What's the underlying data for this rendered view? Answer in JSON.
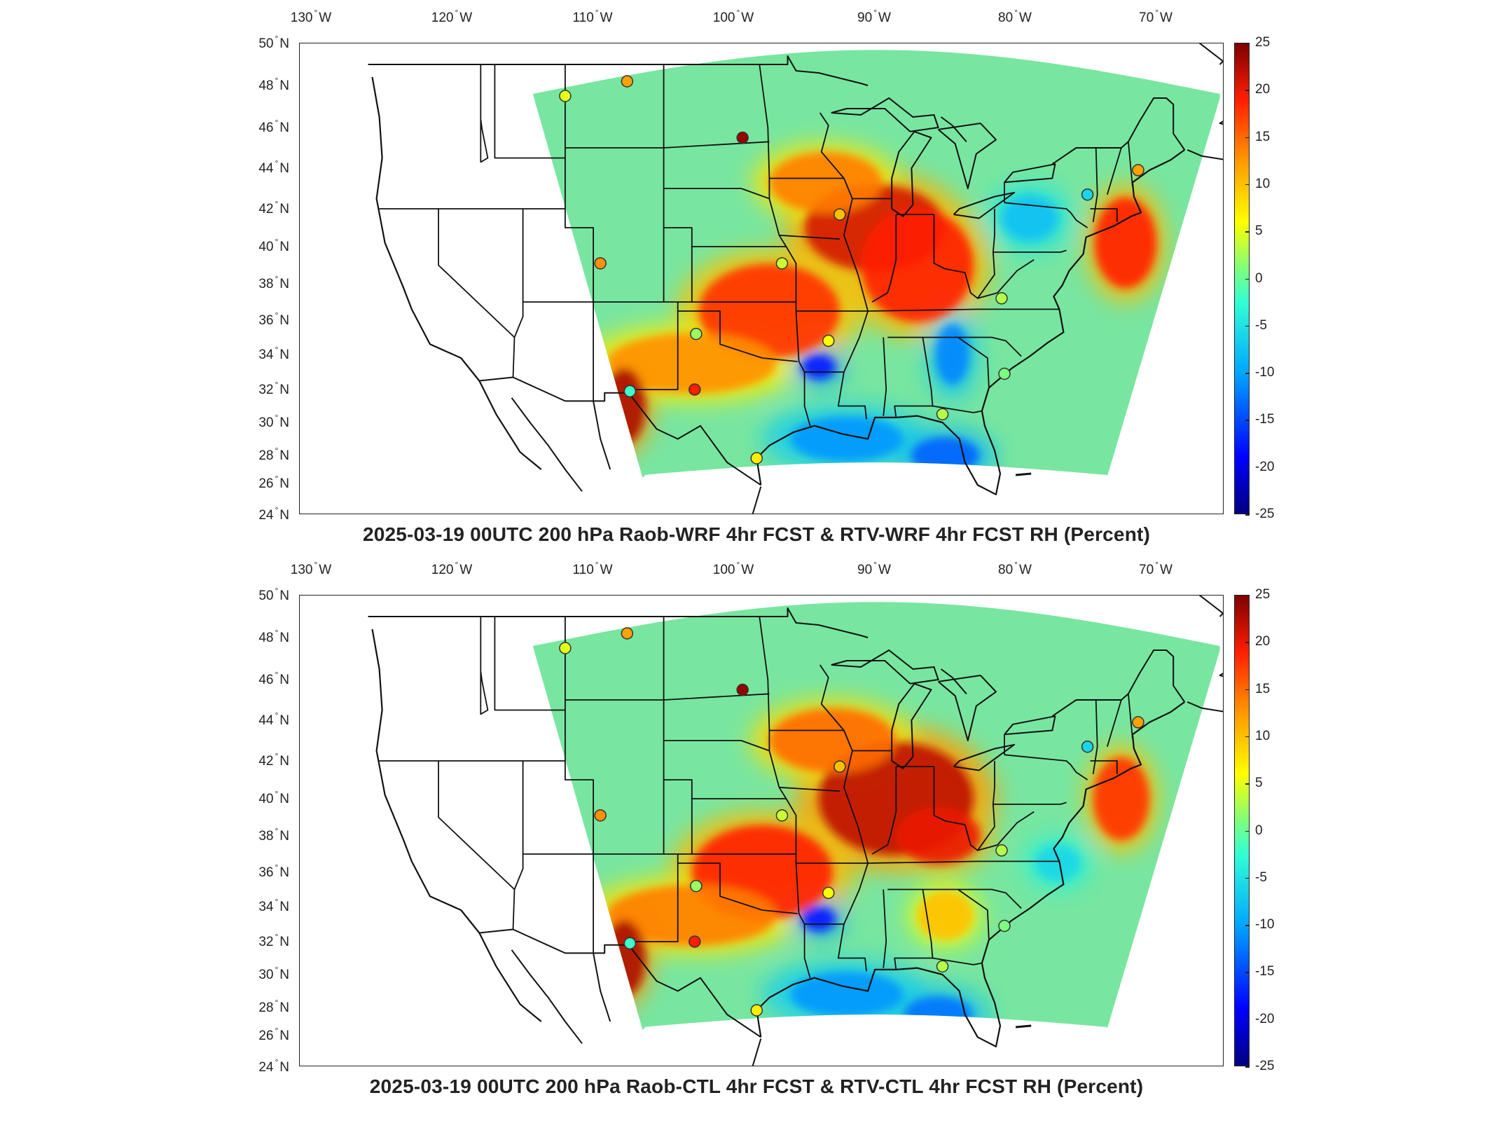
{
  "colors": {
    "colormap": [
      "#00007f",
      "#0000ff",
      "#00a6ff",
      "#32ffd4",
      "#7dff7d",
      "#ffff00",
      "#ff9900",
      "#ff1e00",
      "#7f0000"
    ],
    "domain_base": "#78e6a0",
    "frame": "#222222",
    "marker_outline": "#333333"
  },
  "axes": {
    "lon_labels": [
      "130",
      "120",
      "110",
      "100",
      "90",
      "80",
      "70"
    ],
    "lon_suffix": "W",
    "lat_labels": [
      "50",
      "48",
      "46",
      "44",
      "42",
      "40",
      "38",
      "36",
      "34",
      "32",
      "30",
      "28",
      "26",
      "24"
    ],
    "lat_suffix": "N"
  },
  "colorbar": {
    "ticks": [
      "25",
      "20",
      "15",
      "10",
      "5",
      "0",
      "-5",
      "-10",
      "-15",
      "-20",
      "-25"
    ],
    "min": -25,
    "max": 25
  },
  "panels": [
    {
      "title": "2025-03-19 00UTC 200 hPa Raob-WRF 4hr FCST & RTV-WRF 4hr FCST RH (Percent)",
      "stations": [
        {
          "lon": -111.0,
          "lat": 47.5,
          "value": 5
        },
        {
          "lon": -106.6,
          "lat": 48.2,
          "value": 12
        },
        {
          "lon": -98.4,
          "lat": 45.5,
          "value": 24
        },
        {
          "lon": -108.5,
          "lat": 39.1,
          "value": 13
        },
        {
          "lon": -95.6,
          "lat": 39.1,
          "value": 4
        },
        {
          "lon": -101.7,
          "lat": 35.2,
          "value": 2
        },
        {
          "lon": -92.3,
          "lat": 34.8,
          "value": 6
        },
        {
          "lon": -101.8,
          "lat": 32.0,
          "value": 19
        },
        {
          "lon": -106.4,
          "lat": 31.9,
          "value": -2
        },
        {
          "lon": -97.4,
          "lat": 27.8,
          "value": 7
        },
        {
          "lon": -80.0,
          "lat": 37.2,
          "value": 3
        },
        {
          "lon": -79.8,
          "lat": 32.9,
          "value": 1
        },
        {
          "lon": -84.2,
          "lat": 30.5,
          "value": 3
        },
        {
          "lon": -73.9,
          "lat": 42.7,
          "value": -6
        },
        {
          "lon": -70.3,
          "lat": 43.9,
          "value": 12
        },
        {
          "lon": -91.5,
          "lat": 41.7,
          "value": 10
        }
      ],
      "hot_spots": [
        {
          "lon": -89.0,
          "lat": 41.0,
          "rx": 5,
          "ry": 2.3,
          "value": 21
        },
        {
          "lon": -86.0,
          "lat": 39.0,
          "rx": 4,
          "ry": 3,
          "value": 19
        },
        {
          "lon": -96.5,
          "lat": 36.5,
          "rx": 5,
          "ry": 2.5,
          "value": 18
        },
        {
          "lon": -102.0,
          "lat": 33.5,
          "rx": 6,
          "ry": 1.6,
          "value": 13
        },
        {
          "lon": -106.8,
          "lat": 31.0,
          "rx": 1.5,
          "ry": 2,
          "value": 23
        },
        {
          "lon": -71.2,
          "lat": 40.2,
          "rx": 2.2,
          "ry": 2.4,
          "value": 19
        },
        {
          "lon": -92.5,
          "lat": 43.3,
          "rx": 4,
          "ry": 1.6,
          "value": 14
        }
      ],
      "cold_spots": [
        {
          "lon": -91.0,
          "lat": 29.0,
          "rx": 5,
          "ry": 1.5,
          "value": -11
        },
        {
          "lon": -83.5,
          "lat": 34.0,
          "rx": 1.5,
          "ry": 2,
          "value": -12
        },
        {
          "lon": -84.0,
          "lat": 28.0,
          "rx": 3,
          "ry": 1.2,
          "value": -14
        },
        {
          "lon": -78.0,
          "lat": 41.5,
          "rx": 2.5,
          "ry": 1.5,
          "value": -8
        },
        {
          "lon": -93.0,
          "lat": 33.3,
          "rx": 1.5,
          "ry": 0.8,
          "value": -18
        }
      ]
    },
    {
      "title": "2025-03-19 00UTC 200 hPa Raob-CTL 4hr FCST & RTV-CTL 4hr FCST RH (Percent)",
      "stations": [
        {
          "lon": -111.0,
          "lat": 47.5,
          "value": 5
        },
        {
          "lon": -106.6,
          "lat": 48.2,
          "value": 12
        },
        {
          "lon": -98.4,
          "lat": 45.5,
          "value": 24
        },
        {
          "lon": -108.5,
          "lat": 39.1,
          "value": 13
        },
        {
          "lon": -95.6,
          "lat": 39.1,
          "value": 4
        },
        {
          "lon": -101.7,
          "lat": 35.2,
          "value": 2
        },
        {
          "lon": -92.3,
          "lat": 34.8,
          "value": 6
        },
        {
          "lon": -101.8,
          "lat": 32.0,
          "value": 19
        },
        {
          "lon": -106.4,
          "lat": 31.9,
          "value": -2
        },
        {
          "lon": -97.4,
          "lat": 27.8,
          "value": 7
        },
        {
          "lon": -80.0,
          "lat": 37.2,
          "value": 3
        },
        {
          "lon": -79.8,
          "lat": 32.9,
          "value": 1
        },
        {
          "lon": -84.2,
          "lat": 30.5,
          "value": 3
        },
        {
          "lon": -73.9,
          "lat": 42.7,
          "value": -6
        },
        {
          "lon": -70.3,
          "lat": 43.9,
          "value": 12
        },
        {
          "lon": -91.5,
          "lat": 41.7,
          "value": 10
        }
      ],
      "hot_spots": [
        {
          "lon": -87.5,
          "lat": 40.0,
          "rx": 5.5,
          "ry": 3,
          "value": 22
        },
        {
          "lon": -84.5,
          "lat": 38.0,
          "rx": 3,
          "ry": 1.5,
          "value": 20
        },
        {
          "lon": -97.0,
          "lat": 36.0,
          "rx": 5,
          "ry": 2.5,
          "value": 19
        },
        {
          "lon": -102.0,
          "lat": 33.5,
          "rx": 6,
          "ry": 1.6,
          "value": 14
        },
        {
          "lon": -106.8,
          "lat": 31.0,
          "rx": 1.5,
          "ry": 2,
          "value": 23
        },
        {
          "lon": -71.5,
          "lat": 40.0,
          "rx": 2,
          "ry": 2.2,
          "value": 18
        },
        {
          "lon": -92.0,
          "lat": 43.0,
          "rx": 4.5,
          "ry": 1.7,
          "value": 15
        },
        {
          "lon": -84.0,
          "lat": 33.5,
          "rx": 2,
          "ry": 1.3,
          "value": 10
        }
      ],
      "cold_spots": [
        {
          "lon": -91.0,
          "lat": 28.8,
          "rx": 5,
          "ry": 1.5,
          "value": -11
        },
        {
          "lon": -84.5,
          "lat": 27.5,
          "rx": 3,
          "ry": 1.2,
          "value": -13
        },
        {
          "lon": -93.0,
          "lat": 33.3,
          "rx": 1.5,
          "ry": 0.8,
          "value": -18
        },
        {
          "lon": -76.0,
          "lat": 36.5,
          "rx": 2,
          "ry": 1.2,
          "value": -6
        }
      ]
    }
  ]
}
